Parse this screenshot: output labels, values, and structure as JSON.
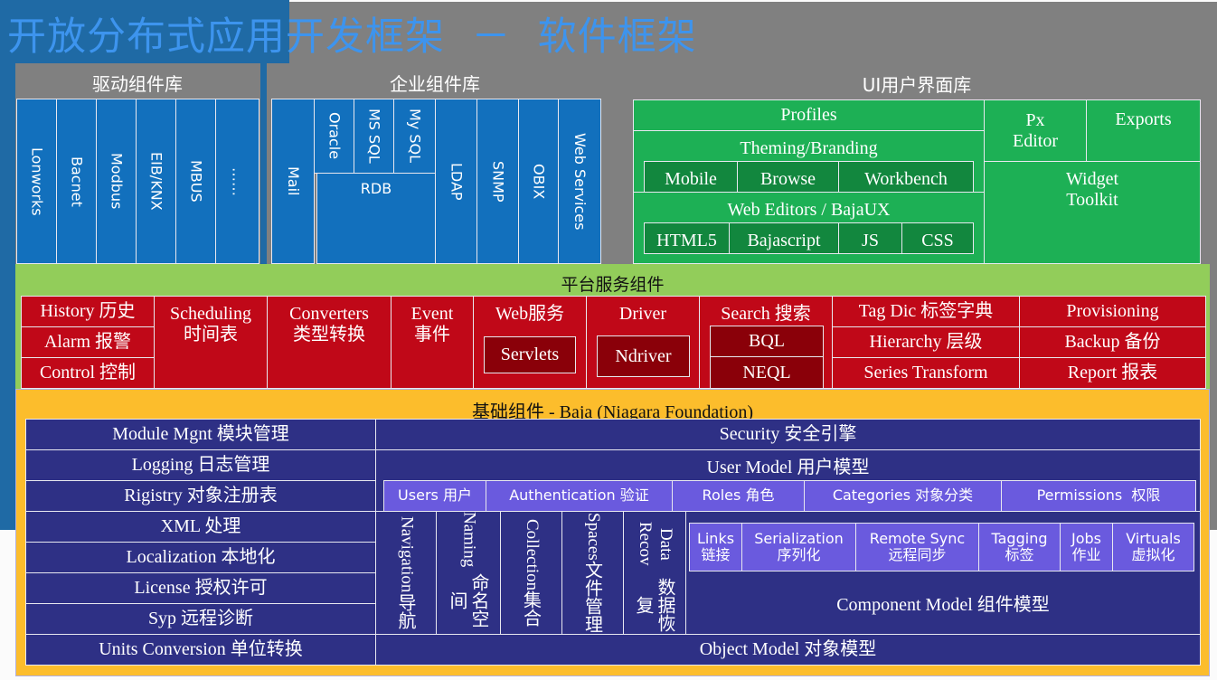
{
  "title": "开放分布式应用开发框架  －  软件框架",
  "colors": {
    "driver_blue": "#1270bd",
    "ui_green": "#1db055",
    "platform_green": "#92cd5a",
    "service_red": "#c00818",
    "foundation_orange": "#fcbd2c",
    "foundation_navy": "#2e3085",
    "purple": "#6a5ade",
    "title_blue": "#3d94ee",
    "background_gray": "#808080"
  },
  "driver_lib": {
    "label": "驱动组件库",
    "items": [
      "Lonworks",
      "Bacnet",
      "Modbus",
      "EIB/KNX",
      "MBUS",
      "……"
    ]
  },
  "enterprise_lib": {
    "label": "企业组件库",
    "mail": "Mail",
    "rdb": {
      "label": "RDB",
      "items": [
        "Oracle",
        "MS SQL",
        "My SQL"
      ]
    },
    "items": [
      "LDAP",
      "SNMP",
      "OBIX",
      "Web Services"
    ]
  },
  "ui_lib": {
    "label": "UI用户界面库",
    "profiles": "Profiles",
    "theming": {
      "label": "Theming/Branding",
      "items": [
        "Mobile",
        "Browse",
        "Workbench"
      ]
    },
    "web_editors": {
      "label": "Web Editors / BajaUX",
      "items": [
        "HTML5",
        "Bajascript",
        "JS",
        "CSS"
      ]
    },
    "px_editor": "Px Editor",
    "exports": "Exports",
    "widget_toolkit": "Widget Toolkit"
  },
  "platform": {
    "label": "平台服务组件",
    "history": "History 历史",
    "alarm": "Alarm 报警",
    "control": "Control 控制",
    "scheduling": {
      "en": "Scheduling",
      "zh": "时间表"
    },
    "converters": {
      "en": "Converters",
      "zh": "类型转换"
    },
    "event": {
      "en": "Event",
      "zh": "事件"
    },
    "web": {
      "label": "Web服务",
      "sub": "Servlets"
    },
    "driver": {
      "label": "Driver",
      "sub": "Ndriver"
    },
    "search": {
      "label": "Search 搜索",
      "items": [
        "BQL",
        "NEQL"
      ]
    },
    "tagdic": "Tag Dic 标签字典",
    "hierarchy": "Hierarchy 层级",
    "series": "Series Transform",
    "provisioning": "Provisioning",
    "backup": "Backup 备份",
    "report": "Report 报表"
  },
  "foundation": {
    "label": "基础组件 - Baja (Niagara Foundation)",
    "left": [
      "Module Mgnt 模块管理",
      "Logging 日志管理",
      "Rigistry 对象注册表",
      "XML 处理",
      "Localization 本地化",
      "License 授权许可",
      "Syp 远程诊断",
      "Units Conversion 单位转换"
    ],
    "security": "Security 安全引擎",
    "user_model": {
      "label": "User Model 用户模型",
      "items": [
        "Users 用户",
        "Authentication 验证",
        "Roles 角色",
        "Categories 对象分类",
        "Permissions  权限"
      ]
    },
    "vertical": [
      {
        "en": "Navigation",
        "zh": "导航"
      },
      {
        "en": "Naming",
        "zh": "命名空间"
      },
      {
        "en": "Collection",
        "zh": "集合"
      },
      {
        "en": "Spaces",
        "zh": "文件管理"
      },
      {
        "en": "Data Recov",
        "zh": "数据恢复"
      }
    ],
    "component_model": {
      "label": "Component Model 组件模型",
      "items": [
        {
          "en": "Links",
          "zh": "链接"
        },
        {
          "en": "Serialization",
          "zh": "序列化"
        },
        {
          "en": "Remote Sync",
          "zh": "远程同步"
        },
        {
          "en": "Tagging",
          "zh": "标签"
        },
        {
          "en": "Jobs",
          "zh": "作业"
        },
        {
          "en": "Virtuals",
          "zh": "虚拟化"
        }
      ]
    },
    "object_model": "Object Model 对象模型"
  }
}
